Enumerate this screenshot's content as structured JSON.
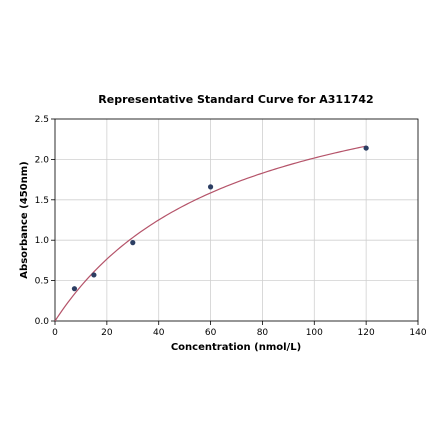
{
  "chart_data": {
    "type": "scatter",
    "title": "Representative Standard Curve for A311742",
    "xlabel": "Concentration (nmol/L)",
    "ylabel": "Absorbance (450nm)",
    "xlim": [
      0,
      140
    ],
    "ylim": [
      0,
      2.5
    ],
    "xticks": [
      "0",
      "20",
      "40",
      "60",
      "80",
      "100",
      "120",
      "140"
    ],
    "yticks": [
      "0.0",
      "0.5",
      "1.0",
      "1.5",
      "2.0",
      "2.5"
    ],
    "grid": true,
    "points": [
      {
        "x": 7.5,
        "y": 0.4
      },
      {
        "x": 15,
        "y": 0.57
      },
      {
        "x": 30,
        "y": 0.97
      },
      {
        "x": 60,
        "y": 1.66
      },
      {
        "x": 120,
        "y": 2.14
      }
    ],
    "fit_curve": {
      "x_range": [
        0,
        120
      ]
    },
    "colors": {
      "curve": "#b5546a",
      "points": "#2c3e63"
    }
  }
}
